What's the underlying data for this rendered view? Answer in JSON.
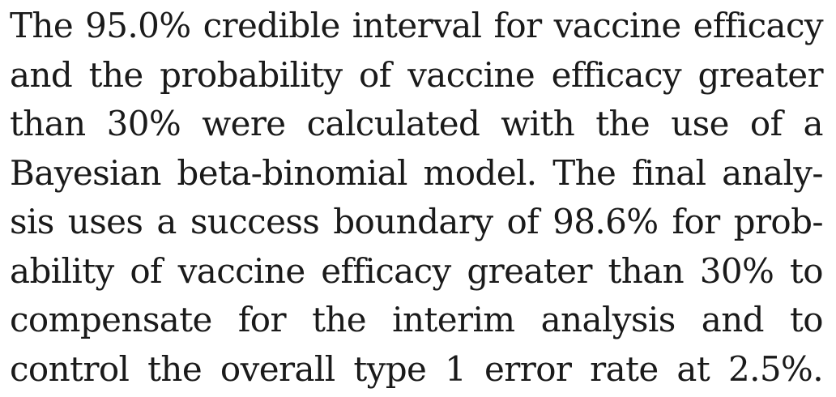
{
  "paragraph": {
    "lines": [
      "The 95.0% credible interval for vaccine efficacy",
      "and the probability of vaccine efficacy greater",
      "than 30% were calculated with the use of a",
      "Bayesian beta-binomial model. The final analy-",
      "sis uses a success boundary of 98.6% for prob-",
      "ability of vaccine efficacy greater than 30% to",
      "compensate for the interim analysis and to",
      "control the overall type 1 error rate at 2.5%."
    ]
  }
}
